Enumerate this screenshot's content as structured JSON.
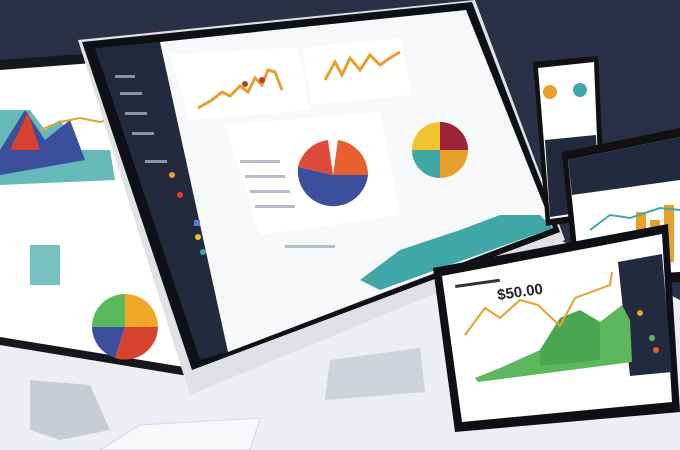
{
  "scene": {
    "background_color": "#2b3046",
    "desk_color": "#eceef1",
    "sidebar_color": "#232a3d"
  },
  "tablet": {
    "headline_value": "$50.00"
  },
  "colors": {
    "orange": "#e8a02a",
    "red": "#d8432f",
    "blue": "#3b4f9c",
    "teal": "#3fa7a6",
    "green": "#5cb85c",
    "yellow": "#f2c230"
  }
}
